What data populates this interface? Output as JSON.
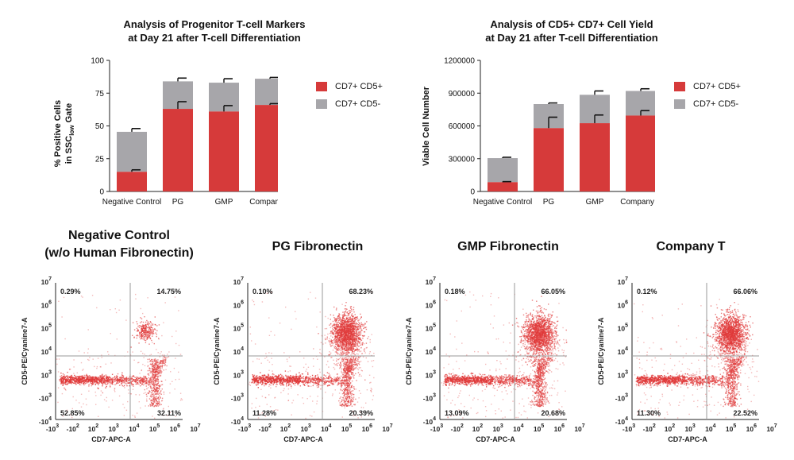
{
  "colors": {
    "cd5pos": "#d63a3a",
    "cd5neg": "#a7a6aa",
    "axis": "#222222",
    "dot": "#e03a3a",
    "gate": "#999999"
  },
  "chart_data": [
    {
      "type": "bar",
      "stacked": true,
      "title_line1": "Analysis of Progenitor T-cell Markers",
      "title_line2": "at Day 21 after T-cell Differentiation",
      "ylabel_line1": "% Positive Cells",
      "ylabel_line2": "in SSC",
      "ylabel_sub": "low",
      "ylabel_tail": " Gate",
      "ylim": [
        0,
        100
      ],
      "yticks": [
        0,
        25,
        50,
        75,
        100
      ],
      "ytick_labels": [
        "0",
        "25",
        "50",
        "75",
        "100"
      ],
      "categories": [
        "Negative Control",
        "PG",
        "GMP",
        "Company T"
      ],
      "series": [
        {
          "name": "CD7+ CD5+",
          "values": [
            15,
            63,
            61,
            66
          ],
          "errors": [
            1.5,
            5.5,
            4.5,
            1
          ]
        },
        {
          "name": "CD7+ CD5-",
          "values": [
            30.5,
            21,
            22,
            20
          ],
          "totals": [
            45.5,
            84,
            83,
            86
          ],
          "errors": [
            2.5,
            2.5,
            3,
            1
          ]
        }
      ],
      "legend": "right"
    },
    {
      "type": "bar",
      "stacked": true,
      "title_line1": "Analysis of CD5+ CD7+ Cell Yield",
      "title_line2": "at Day 21 after T-cell Differentiation",
      "ylabel_line1": "Viable Cell Number",
      "ylim": [
        0,
        1200000
      ],
      "yticks": [
        0,
        300000,
        600000,
        900000,
        1200000
      ],
      "ytick_labels": [
        "0",
        "300000",
        "600000",
        "900000",
        "1200000"
      ],
      "categories": [
        "Negative Control",
        "PG",
        "GMP",
        "Company T"
      ],
      "series": [
        {
          "name": "CD7+ CD5+",
          "values": [
            85000,
            580000,
            625000,
            695000
          ],
          "errors": [
            5000,
            100000,
            75000,
            45000
          ]
        },
        {
          "name": "CD7+ CD5-",
          "values": [
            220000,
            220000,
            260000,
            225000
          ],
          "totals": [
            305000,
            800000,
            885000,
            920000
          ],
          "errors": [
            8000,
            10000,
            35000,
            20000
          ]
        }
      ],
      "legend": "right"
    },
    {
      "type": "scatter",
      "title_line1": "Negative Control",
      "title_line2": "(w/o Human Fibronectin)",
      "xlabel": "CD7-APC-A",
      "ylabel": "CD5-PE/Cyanine7-A",
      "quadrants": {
        "ul": "0.29%",
        "ur": "14.75%",
        "ll": "52.85%",
        "lr": "32.11%"
      },
      "profile": "neg"
    },
    {
      "type": "scatter",
      "title_line1": "PG Fibronectin",
      "xlabel": "CD7-APC-A",
      "ylabel": "CD5-PE/Cyanine7-A",
      "quadrants": {
        "ul": "0.10%",
        "ur": "68.23%",
        "ll": "11.28%",
        "lr": "20.39%"
      },
      "profile": "pos"
    },
    {
      "type": "scatter",
      "title_line1": "GMP Fibronectin",
      "xlabel": "CD7-APC-A",
      "ylabel": "CD5-PE/Cyanine7-A",
      "quadrants": {
        "ul": "0.18%",
        "ur": "66.05%",
        "ll": "13.09%",
        "lr": "20.68%"
      },
      "profile": "pos"
    },
    {
      "type": "scatter",
      "title_line1": "Company T",
      "xlabel": "CD7-APC-A",
      "ylabel": "CD5-PE/Cyanine7-A",
      "quadrants": {
        "ul": "0.12%",
        "ur": "66.06%",
        "ll": "11.30%",
        "lr": "22.52%"
      },
      "profile": "pos"
    }
  ],
  "facs_axis": {
    "x_ticks": [
      {
        "base": "-10",
        "exp": "3"
      },
      {
        "base": "-10",
        "exp": "2"
      },
      {
        "base": "10",
        "exp": "2"
      },
      {
        "base": "10",
        "exp": "3"
      },
      {
        "base": "10",
        "exp": "4"
      },
      {
        "base": "10",
        "exp": "5"
      },
      {
        "base": "10",
        "exp": "6"
      },
      {
        "base": "10",
        "exp": "7"
      }
    ],
    "y_ticks": [
      {
        "base": "10",
        "exp": "7"
      },
      {
        "base": "10",
        "exp": "6"
      },
      {
        "base": "10",
        "exp": "5"
      },
      {
        "base": "10",
        "exp": "4"
      },
      {
        "base": "10",
        "exp": "3"
      },
      {
        "base": "-10",
        "exp": "3"
      },
      {
        "base": "-10",
        "exp": "4"
      }
    ]
  }
}
